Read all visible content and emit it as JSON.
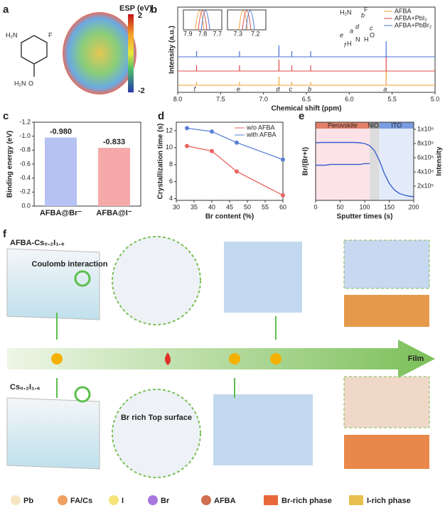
{
  "panels": [
    "a",
    "b",
    "c",
    "d",
    "e",
    "f"
  ],
  "esp": {
    "title": "ESP (eV)",
    "max": "2",
    "min": "-2",
    "atoms": [
      "H₂N",
      "F",
      "H₂N",
      "O"
    ]
  },
  "chart_data": [
    {
      "type": "spectrum",
      "x_label": "Chemical shift (ppm)",
      "y_label": "Intensity (a.u.)",
      "x": [
        7.78,
        7.28,
        6.82,
        6.67,
        6.45,
        5.57
      ],
      "peak_labels": [
        "f",
        "e",
        "d",
        "c",
        "b",
        "a"
      ],
      "series": [
        {
          "name": "AFBA",
          "color": "#f0a030",
          "values": [
            0.12,
            0.12,
            0.3,
            0.12,
            0.12,
            0.5
          ]
        },
        {
          "name": "AFBA+PbI₂",
          "color": "#e04848",
          "values": [
            0.2,
            0.2,
            0.4,
            0.2,
            0.2,
            0.55
          ]
        },
        {
          "name": "AFBA+PbBr₂",
          "color": "#4a6fd6",
          "values": [
            0.2,
            0.2,
            0.4,
            0.2,
            0.2,
            0.55
          ]
        }
      ],
      "xlim": [
        8.0,
        5.0
      ],
      "xticks": [
        {
          "value": 8,
          "label": "8.0"
        },
        7.5,
        {
          "value": 7,
          "label": "7.0"
        },
        6.5,
        {
          "value": 6,
          "label": "6.0"
        },
        5.5,
        {
          "value": 5,
          "label": "5.0"
        }
      ],
      "insets": [
        {
          "xlim": [
            7.93,
            7.67
          ],
          "xticks": [
            7.9,
            7.8,
            7.7
          ],
          "peaks": [
            7.82,
            7.8,
            7.78
          ]
        },
        {
          "xlim": [
            7.36,
            7.14
          ],
          "xticks": [
            7.3,
            7.2
          ],
          "peaks": [
            7.27,
            7.25,
            7.23
          ]
        }
      ],
      "structure_labels": [
        "H₂N",
        "F",
        "O",
        "H",
        "N",
        "H",
        "a",
        "b",
        "c",
        "d",
        "e",
        "f"
      ]
    },
    {
      "type": "bar",
      "y_label": "Binding energy (eV)",
      "categories": [
        "AFBA@Br⁻",
        "AFBA@I⁻"
      ],
      "values": [
        -0.98,
        -0.833
      ],
      "value_labels": [
        "-0.980",
        "-0.833"
      ],
      "colors": [
        "#b6c2f4",
        "#f6a9a9"
      ],
      "ylim": [
        0,
        -1.2
      ],
      "yticks": [
        {
          "value": 0,
          "label": "0.0"
        },
        -0.2,
        -0.4,
        -0.6,
        -0.8,
        {
          "value": -1,
          "label": "-1.0"
        },
        -1.2
      ]
    },
    {
      "type": "line",
      "x_label": "Br content (%)",
      "y_label": "Crystallization time (s)",
      "x": [
        33,
        40,
        47,
        60
      ],
      "series": [
        {
          "name": "w/o AFBA",
          "color": "#e8635e",
          "values": [
            10.2,
            9.6,
            7.2,
            4.4
          ]
        },
        {
          "name": "with AFBA",
          "color": "#5b7fd8",
          "values": [
            12.3,
            11.9,
            10.6,
            8.6
          ]
        }
      ],
      "xlim": [
        30,
        60
      ],
      "xticks": [
        30,
        35,
        40,
        45,
        50,
        55,
        60
      ],
      "ylim": [
        3.8,
        13
      ],
      "yticks": [
        4,
        6,
        8,
        10,
        12
      ]
    },
    {
      "type": "dual",
      "x_label": "Sputter times (s)",
      "y_label": "Br/(Br+I)",
      "y2_label": "Intensity",
      "x": [
        0,
        10,
        20,
        30,
        40,
        50,
        60,
        70,
        80,
        90,
        100,
        110,
        120,
        130,
        140,
        150,
        160,
        170,
        180,
        190,
        200
      ],
      "series": [
        {
          "color": "#3a5fcd",
          "values": [
            0.45,
            0.45,
            0.45,
            0.46,
            0.46,
            0.46,
            0.46,
            0.46,
            0.46,
            0.46,
            0.47,
            0.47,
            null,
            null,
            null,
            null,
            null,
            null,
            null,
            null,
            null
          ]
        },
        {
          "color": "#3a5fcd",
          "axis": "y2",
          "values": [
            810000,
            815000,
            815000,
            815000,
            815000,
            815000,
            815000,
            815000,
            815000,
            810000,
            800000,
            770000,
            700000,
            560000,
            380000,
            240000,
            150000,
            100000,
            75000,
            60000,
            50000
          ]
        }
      ],
      "regions": [
        {
          "label": "Perovskite",
          "range": [
            0,
            110
          ],
          "color": "#fde3e8"
        },
        {
          "label": "NiOₓ",
          "range": [
            110,
            130
          ],
          "color": "#dcdcdc"
        },
        {
          "label": "ITO",
          "range": [
            130,
            200
          ],
          "color": "#e3ebfa"
        }
      ],
      "xlim": [
        0,
        200
      ],
      "xticks": [
        0,
        50,
        100,
        150,
        200
      ],
      "ylim": [
        0,
        1
      ],
      "y2lim": [
        0,
        1100000
      ],
      "y2ticks": [
        {
          "value": 200000,
          "label": "2x10⁵"
        },
        {
          "value": 400000,
          "label": "4x10⁵"
        },
        {
          "value": 600000,
          "label": "6x10⁵"
        },
        {
          "value": 800000,
          "label": "8x10⁵"
        },
        {
          "value": 1000000,
          "label": "1x10⁶"
        }
      ]
    }
  ],
  "schematic": {
    "top_label": "AFBA-Cs₀.₂I₁.₆",
    "top_zoom": "Coulomb interaction",
    "bottom_label": "Cs₀.₂I₁.₆",
    "bottom_zoom": "Br rich Top surface",
    "arrow": "Film",
    "legend": [
      "Pb",
      "FA/Cs",
      "I",
      "Br",
      "AFBA",
      "Br-rich phase",
      "I-rich phase"
    ]
  }
}
